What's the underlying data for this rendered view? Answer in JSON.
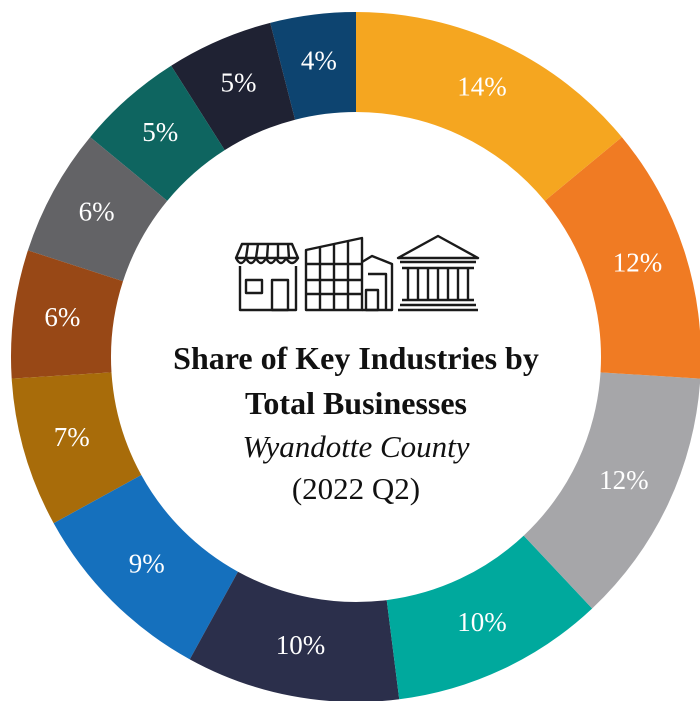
{
  "chart_data": {
    "type": "donut",
    "title": "Share of Key Industries by Total Businesses",
    "subtitle": "Wyandotte County",
    "period": "(2022 Q2)",
    "values": [
      14,
      12,
      12,
      10,
      10,
      9,
      7,
      6,
      6,
      5,
      5,
      4
    ],
    "value_labels": [
      "14%",
      "12%",
      "12%",
      "10%",
      "10%",
      "9%",
      "7%",
      "6%",
      "6%",
      "5%",
      "5%",
      "4%"
    ],
    "colors": [
      "#f5a620",
      "#f07b23",
      "#a6a6a9",
      "#00a99d",
      "#2b2f4b",
      "#1570bd",
      "#a86c0a",
      "#984816",
      "#636366",
      "#0e6560",
      "#1f2233",
      "#0d4470"
    ]
  }
}
